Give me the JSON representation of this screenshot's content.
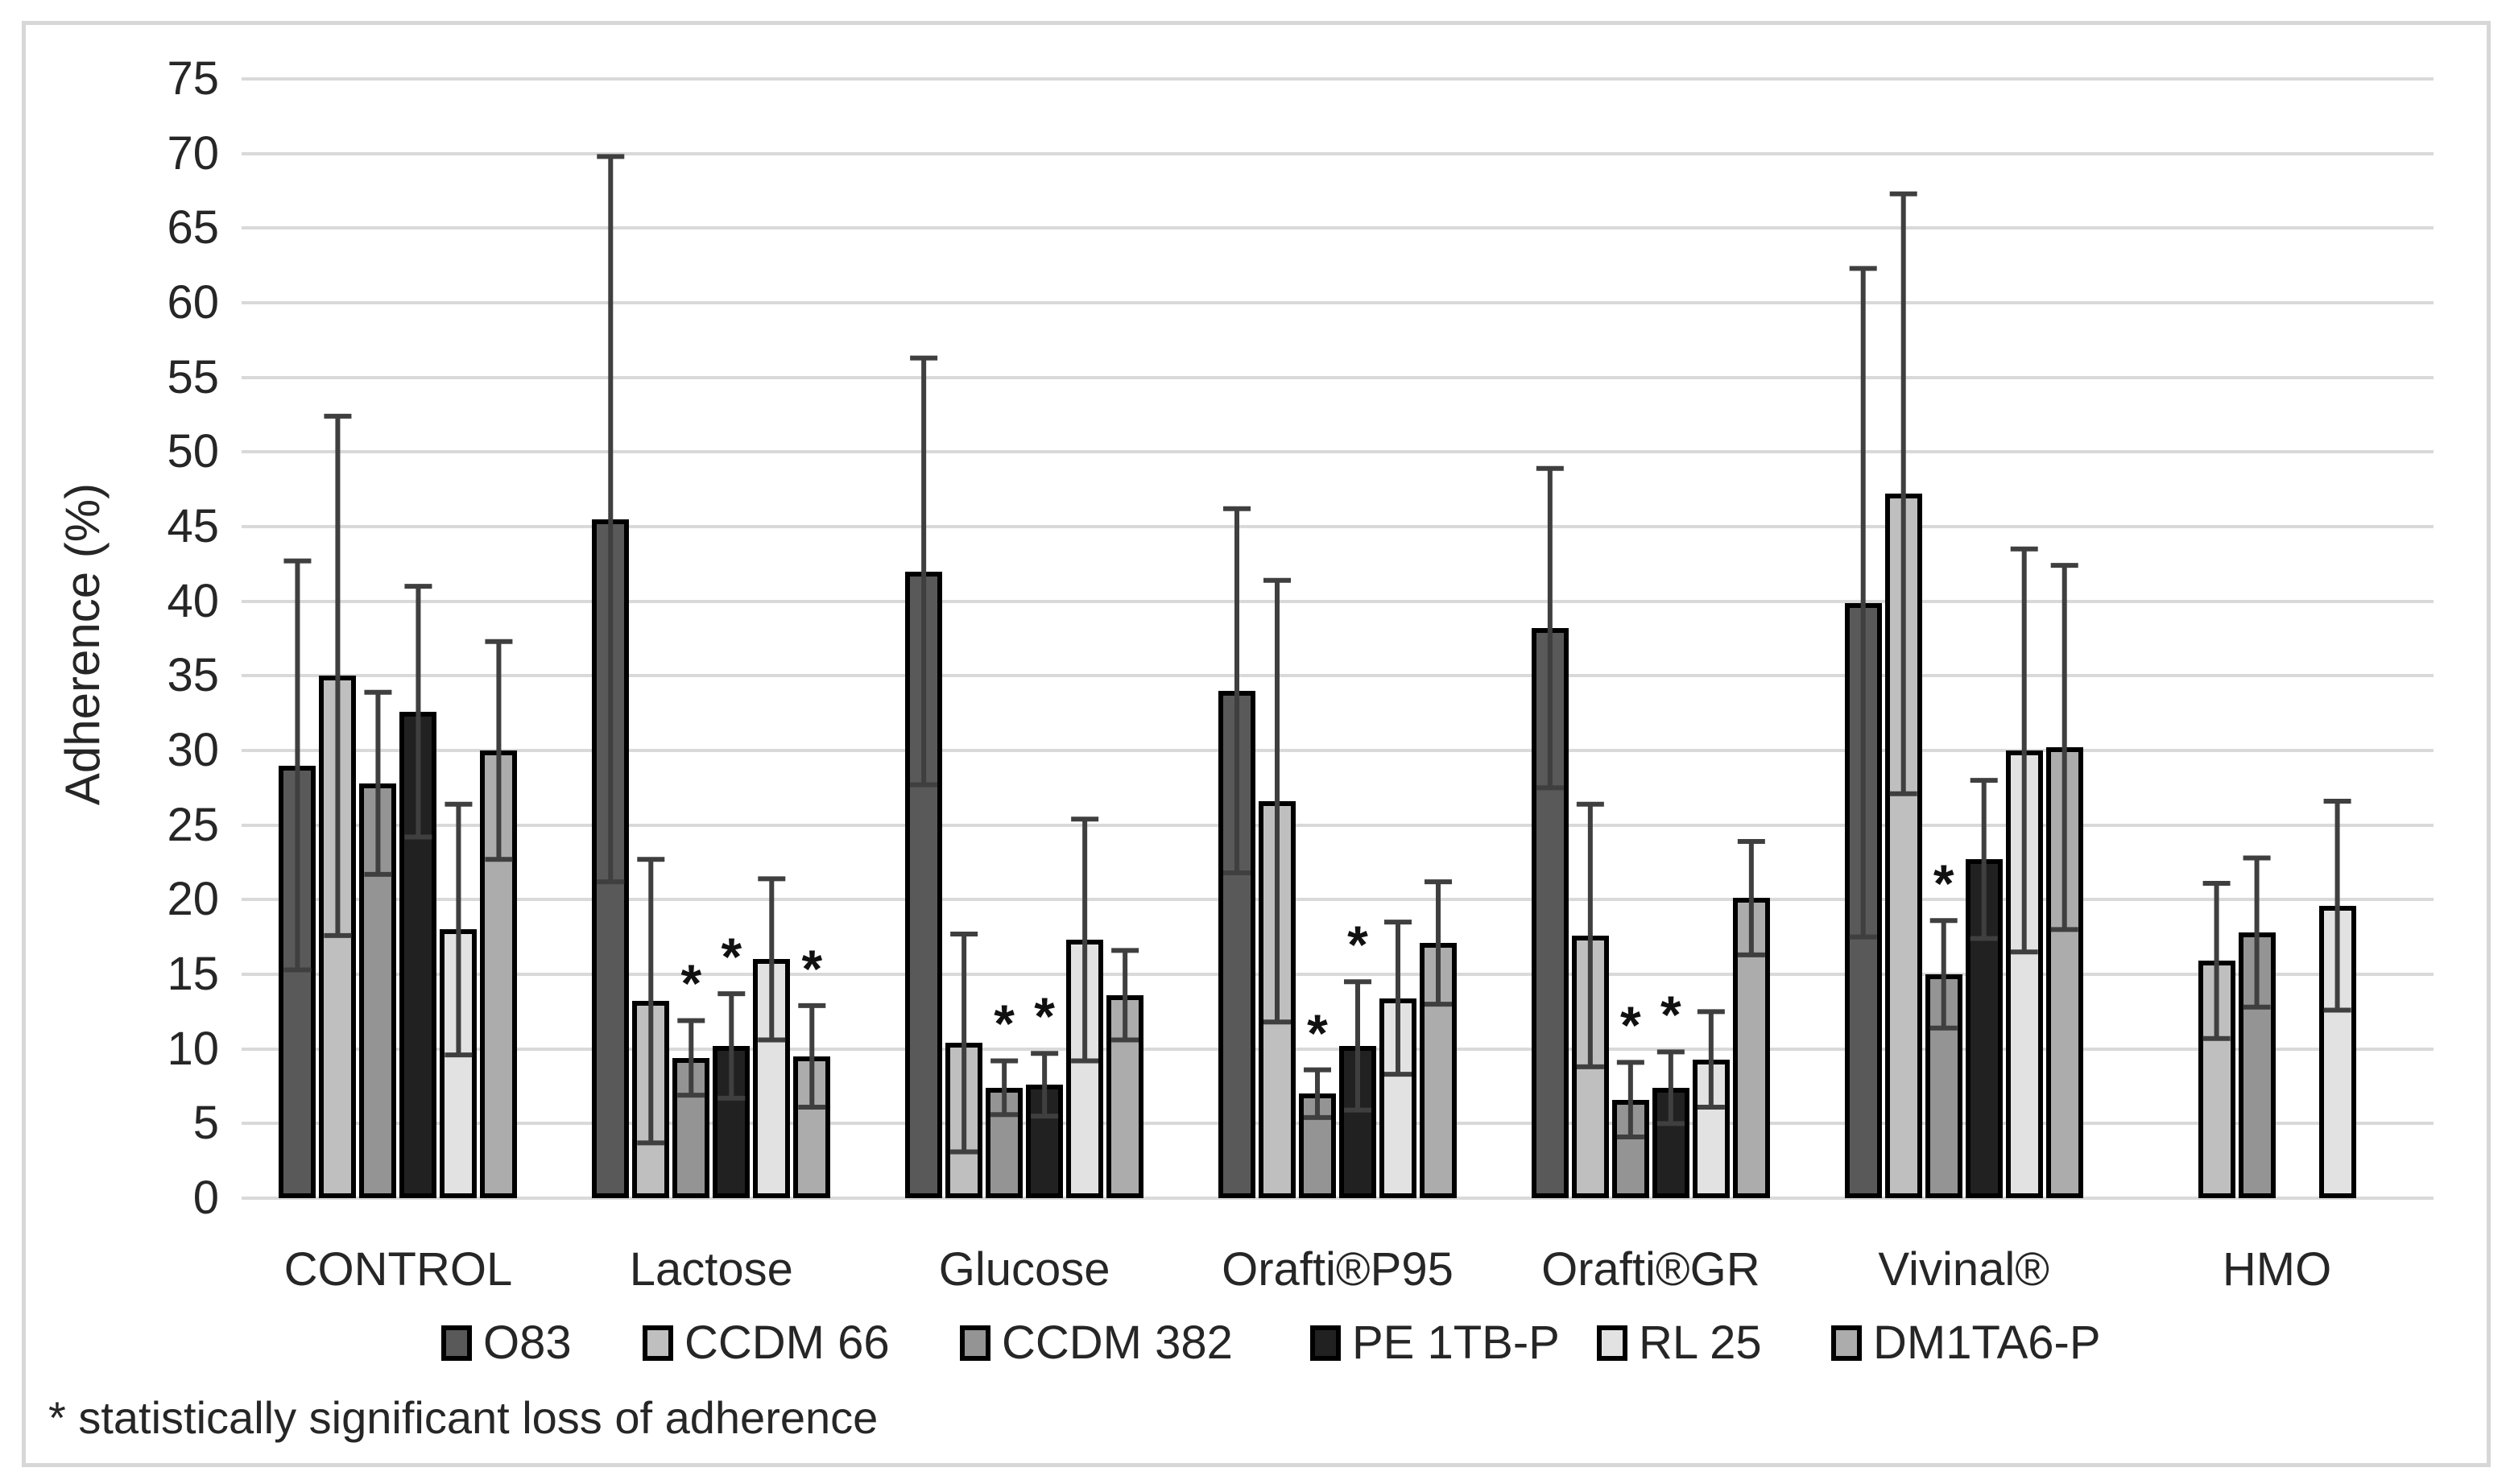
{
  "colors": {
    "background": "#ffffff",
    "frame": "#d7d7d7",
    "grid": "#d9d9d9",
    "text": "#262626",
    "bar_border": "#000000",
    "error_bar": "#3f3f3f"
  },
  "chart_data": {
    "type": "bar",
    "title": "",
    "xlabel": "",
    "ylabel": "Adherence (%)",
    "ylim": [
      0,
      75
    ],
    "ytick_step": 5,
    "grid": true,
    "legend_position": "bottom",
    "error_bars": true,
    "significance_marker": "*",
    "footnote": "* statistically significant loss of adherence",
    "categories": [
      "CONTROL",
      "Lactose",
      "Glucose",
      "Orafti®P95",
      "Orafti®GR",
      "Vivinal®",
      "HMO"
    ],
    "series": [
      {
        "name": "O83",
        "color": "#595959",
        "values": [
          29.0,
          45.5,
          42.0,
          34.0,
          38.2,
          39.9,
          null
        ],
        "errors": [
          13.7,
          24.3,
          14.3,
          12.2,
          10.7,
          22.4,
          null
        ],
        "significant": [
          false,
          false,
          false,
          false,
          false,
          false,
          false
        ]
      },
      {
        "name": "CCDM 66",
        "color": "#bfbfbf",
        "values": [
          35.0,
          13.2,
          10.4,
          26.6,
          17.6,
          47.2,
          15.9
        ],
        "errors": [
          17.4,
          9.5,
          7.3,
          14.8,
          8.8,
          20.1,
          5.2
        ],
        "significant": [
          false,
          false,
          false,
          false,
          false,
          false,
          false
        ]
      },
      {
        "name": "CCDM 382",
        "color": "#949494",
        "values": [
          27.8,
          9.4,
          7.4,
          7.0,
          6.6,
          15.0,
          17.8
        ],
        "errors": [
          6.1,
          2.5,
          1.8,
          1.6,
          2.5,
          3.6,
          5.0
        ],
        "significant": [
          false,
          true,
          true,
          true,
          true,
          true,
          false
        ]
      },
      {
        "name": "PE 1TB-P",
        "color": "#212121",
        "values": [
          32.6,
          10.2,
          7.6,
          10.2,
          7.4,
          22.7,
          null
        ],
        "errors": [
          8.4,
          3.5,
          2.1,
          4.3,
          2.4,
          5.3,
          null
        ],
        "significant": [
          false,
          true,
          true,
          true,
          true,
          false,
          false
        ]
      },
      {
        "name": "RL 25",
        "color": "#e2e2e2",
        "values": [
          18.0,
          16.0,
          17.3,
          13.4,
          9.3,
          30.0,
          19.6
        ],
        "errors": [
          8.4,
          5.4,
          8.1,
          5.1,
          3.2,
          13.5,
          7.0
        ],
        "significant": [
          false,
          false,
          false,
          false,
          false,
          false,
          false
        ]
      },
      {
        "name": "DM1TA6-P",
        "color": "#acacac",
        "values": [
          30.0,
          9.5,
          13.6,
          17.1,
          20.1,
          30.2,
          null
        ],
        "errors": [
          7.3,
          3.4,
          3.0,
          4.1,
          3.8,
          12.2,
          null
        ],
        "significant": [
          false,
          true,
          false,
          false,
          false,
          false,
          false
        ]
      }
    ]
  }
}
